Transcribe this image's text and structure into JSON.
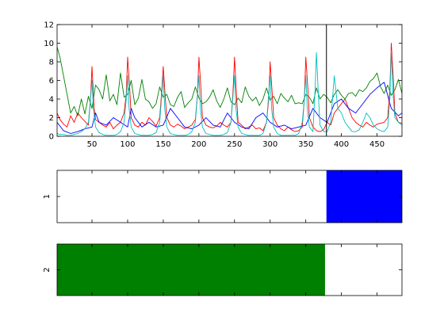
{
  "chart_data": [
    {
      "type": "line",
      "title": "",
      "xlabel": "",
      "ylabel": "",
      "xlim": [
        1,
        485
      ],
      "ylim": [
        0,
        12
      ],
      "xticks": [
        50,
        100,
        150,
        200,
        250,
        300,
        350,
        400,
        450
      ],
      "yticks": [
        0,
        2,
        4,
        6,
        8,
        10,
        12
      ],
      "grid": false,
      "legend": "none",
      "vertical_marker_x": 379,
      "series": [
        {
          "color": "#008000",
          "x": [
            1,
            5,
            10,
            15,
            20,
            25,
            30,
            35,
            40,
            45,
            50,
            55,
            60,
            65,
            70,
            75,
            80,
            85,
            90,
            95,
            100,
            105,
            110,
            115,
            120,
            125,
            130,
            135,
            140,
            145,
            150,
            155,
            160,
            165,
            170,
            175,
            180,
            185,
            190,
            195,
            200,
            205,
            210,
            215,
            220,
            225,
            230,
            235,
            240,
            245,
            250,
            255,
            260,
            265,
            270,
            275,
            280,
            285,
            290,
            295,
            300,
            305,
            310,
            315,
            320,
            325,
            330,
            335,
            340,
            345,
            350,
            355,
            360,
            365,
            370,
            375,
            380,
            385,
            390,
            395,
            400,
            405,
            410,
            415,
            420,
            425,
            430,
            435,
            440,
            445,
            450,
            455,
            460,
            465,
            470,
            475,
            480,
            485
          ],
          "values": [
            9.6,
            8.5,
            6.5,
            4.5,
            2.5,
            3.2,
            2.2,
            4.0,
            2.4,
            4.3,
            3.0,
            5.5,
            5.0,
            4.0,
            6.6,
            3.8,
            4.5,
            3.4,
            6.8,
            4.2,
            4.5,
            6.0,
            3.4,
            4.1,
            6.1,
            4.0,
            3.7,
            3.0,
            3.5,
            5.3,
            4.2,
            4.5,
            3.4,
            3.2,
            4.2,
            4.8,
            3.1,
            3.6,
            4.0,
            5.3,
            4.1,
            3.5,
            3.7,
            4.2,
            5.0,
            3.8,
            3.1,
            4.0,
            5.2,
            3.7,
            3.4,
            4.1,
            3.6,
            5.3,
            4.3,
            3.8,
            4.2,
            3.3,
            4.0,
            5.2,
            3.9,
            4.3,
            3.5,
            4.6,
            4.1,
            3.7,
            4.4,
            3.5,
            3.6,
            3.5,
            4.5,
            4.2,
            3.5,
            5.2,
            4.0,
            4.5,
            4.2,
            3.6,
            4.5,
            5.0,
            4.4,
            4.0,
            4.6,
            4.7,
            4.3,
            5.0,
            4.8,
            5.2,
            5.9,
            6.2,
            6.8,
            5.3,
            4.6,
            5.5,
            4.4,
            5.0,
            6.1,
            4.6
          ]
        },
        {
          "color": "#ff0000",
          "x": [
            1,
            5,
            10,
            15,
            20,
            25,
            30,
            35,
            40,
            45,
            48,
            50,
            53,
            55,
            60,
            65,
            70,
            75,
            80,
            85,
            90,
            95,
            98,
            100,
            103,
            105,
            110,
            115,
            120,
            125,
            130,
            135,
            140,
            145,
            148,
            150,
            153,
            155,
            160,
            165,
            170,
            175,
            180,
            185,
            190,
            195,
            198,
            200,
            203,
            205,
            210,
            215,
            220,
            225,
            230,
            235,
            240,
            245,
            248,
            250,
            253,
            255,
            260,
            265,
            270,
            275,
            280,
            285,
            290,
            295,
            298,
            300,
            303,
            305,
            310,
            315,
            320,
            325,
            330,
            335,
            340,
            345,
            348,
            350,
            353,
            355,
            360,
            365,
            370,
            375,
            380,
            385,
            390,
            395,
            400,
            405,
            410,
            415,
            420,
            425,
            430,
            435,
            440,
            445,
            450,
            455,
            460,
            465,
            468,
            470,
            473,
            475,
            480,
            485
          ],
          "values": [
            2.5,
            1.8,
            1.3,
            1.0,
            2.2,
            1.5,
            2.5,
            2.0,
            1.6,
            1.2,
            4.0,
            7.5,
            3.0,
            1.8,
            1.5,
            1.2,
            1.0,
            1.5,
            0.8,
            1.2,
            1.5,
            2.5,
            4.5,
            8.5,
            5.0,
            2.0,
            1.2,
            1.0,
            1.5,
            1.2,
            2.0,
            1.6,
            1.1,
            2.0,
            5.0,
            7.5,
            4.0,
            2.0,
            1.2,
            1.0,
            1.3,
            1.1,
            0.8,
            1.0,
            1.2,
            1.8,
            4.5,
            8.5,
            5.0,
            2.0,
            1.2,
            1.0,
            0.9,
            1.1,
            1.5,
            1.2,
            1.0,
            1.5,
            5.0,
            8.5,
            4.0,
            1.5,
            1.2,
            0.8,
            1.0,
            1.2,
            0.8,
            0.9,
            0.6,
            1.5,
            4.0,
            8.0,
            4.5,
            2.0,
            1.2,
            0.8,
            0.6,
            1.0,
            0.7,
            0.5,
            0.6,
            1.0,
            4.0,
            8.5,
            5.0,
            2.0,
            1.0,
            0.6,
            0.5,
            0.7,
            1.5,
            1.2,
            2.5,
            3.0,
            3.5,
            4.0,
            3.0,
            2.0,
            1.5,
            1.2,
            1.0,
            1.5,
            1.2,
            1.0,
            1.3,
            1.4,
            1.5,
            2.0,
            5.0,
            10.0,
            6.0,
            2.5,
            1.5,
            1.4
          ]
        },
        {
          "color": "#0000ff",
          "x": [
            1,
            10,
            20,
            30,
            40,
            50,
            55,
            60,
            70,
            80,
            90,
            100,
            105,
            110,
            120,
            130,
            140,
            150,
            160,
            170,
            180,
            190,
            200,
            210,
            220,
            230,
            240,
            250,
            260,
            270,
            280,
            290,
            300,
            310,
            320,
            330,
            340,
            350,
            360,
            370,
            380,
            390,
            400,
            410,
            420,
            430,
            440,
            450,
            460,
            470,
            480,
            485
          ],
          "values": [
            1.5,
            0.6,
            0.3,
            0.5,
            0.8,
            1.0,
            2.5,
            1.5,
            1.2,
            2.0,
            1.5,
            1.0,
            3.0,
            2.0,
            1.0,
            1.5,
            1.0,
            1.2,
            3.0,
            2.0,
            1.0,
            0.8,
            1.2,
            2.0,
            1.2,
            1.0,
            2.5,
            1.5,
            1.0,
            0.8,
            2.0,
            2.5,
            1.5,
            1.0,
            1.2,
            0.8,
            1.0,
            1.2,
            3.0,
            2.0,
            1.5,
            3.5,
            4.0,
            3.0,
            2.5,
            3.5,
            4.5,
            5.2,
            5.8,
            3.0,
            2.2,
            2.5
          ]
        },
        {
          "color": "#00bfbf",
          "x": [
            1,
            5,
            10,
            15,
            20,
            25,
            30,
            35,
            40,
            45,
            48,
            50,
            52,
            55,
            60,
            65,
            70,
            75,
            80,
            85,
            90,
            95,
            98,
            100,
            102,
            105,
            110,
            115,
            120,
            125,
            130,
            135,
            140,
            145,
            148,
            150,
            152,
            155,
            160,
            165,
            170,
            175,
            180,
            185,
            190,
            195,
            198,
            200,
            202,
            205,
            210,
            215,
            220,
            225,
            230,
            235,
            240,
            245,
            248,
            250,
            252,
            255,
            260,
            265,
            270,
            275,
            280,
            285,
            290,
            295,
            298,
            300,
            302,
            305,
            310,
            315,
            320,
            325,
            330,
            335,
            340,
            345,
            348,
            350,
            352,
            355,
            360,
            363,
            365,
            368,
            370,
            375,
            380,
            385,
            390,
            395,
            400,
            405,
            410,
            415,
            420,
            425,
            430,
            435,
            440,
            445,
            450,
            455,
            460,
            465,
            468,
            470,
            472,
            475,
            480,
            485
          ],
          "values": [
            0.3,
            0.2,
            0.2,
            0.1,
            0.1,
            0.2,
            0.3,
            0.5,
            0.8,
            1.5,
            4.0,
            6.0,
            3.0,
            1.0,
            0.4,
            0.2,
            0.1,
            0.1,
            0.1,
            0.2,
            0.5,
            1.5,
            4.0,
            6.5,
            3.0,
            1.0,
            0.3,
            0.2,
            0.1,
            0.1,
            0.1,
            0.2,
            0.4,
            1.5,
            4.5,
            6.5,
            3.0,
            1.0,
            0.3,
            0.2,
            0.1,
            0.1,
            0.1,
            0.2,
            0.5,
            1.5,
            4.5,
            6.5,
            3.0,
            1.0,
            0.3,
            0.2,
            0.1,
            0.1,
            0.1,
            0.2,
            0.4,
            1.5,
            4.5,
            6.5,
            3.0,
            1.0,
            0.3,
            0.2,
            0.1,
            0.1,
            0.1,
            0.1,
            0.3,
            1.5,
            4.5,
            6.5,
            3.0,
            1.0,
            0.3,
            0.1,
            0.1,
            0.1,
            0.1,
            0.1,
            0.3,
            1.5,
            4.0,
            6.5,
            3.0,
            1.0,
            0.5,
            5.0,
            9.0,
            4.0,
            1.2,
            0.5,
            0.5,
            1.5,
            6.5,
            3.0,
            2.5,
            1.5,
            1.0,
            0.5,
            0.5,
            0.7,
            1.5,
            2.5,
            2.0,
            1.2,
            0.8,
            0.6,
            0.5,
            1.0,
            4.0,
            9.2,
            5.0,
            2.0,
            1.5,
            1.2
          ]
        }
      ]
    },
    {
      "type": "heatmap",
      "title": "",
      "xlim": [
        1,
        485
      ],
      "yticks": [
        "1"
      ],
      "grid": false,
      "segments": [
        {
          "from": 379,
          "to": 485,
          "color": "#0000ff"
        }
      ]
    },
    {
      "type": "heatmap",
      "title": "",
      "xlim": [
        1,
        485
      ],
      "yticks": [
        "2"
      ],
      "grid": false,
      "segments": [
        {
          "from": 1,
          "to": 377,
          "color": "#008000"
        }
      ]
    }
  ]
}
